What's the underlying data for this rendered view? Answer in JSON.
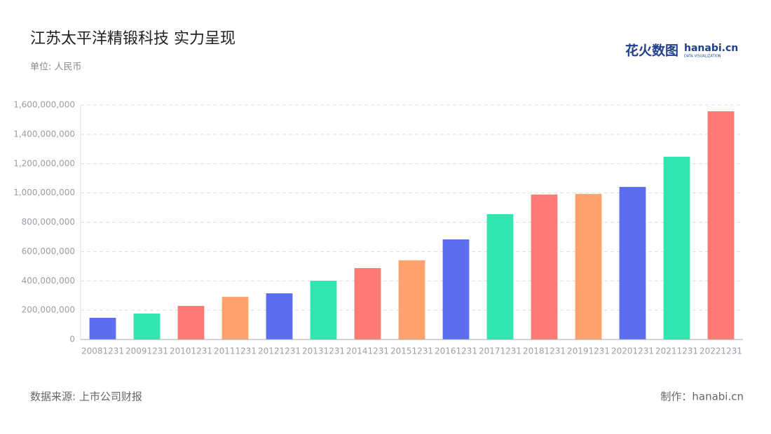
{
  "chart_data": {
    "type": "bar",
    "title": "江苏太平洋精锻科技 实力呈现",
    "subtitle": "单位: 人民币",
    "source": "数据来源: 上市公司财报",
    "credit": "制作：hanabi.cn",
    "logo": {
      "brand": "花火数图",
      "site": "hanabi.cn",
      "tagline": "DATA VISUALIZATION"
    },
    "categories": [
      "20081231",
      "20091231",
      "20101231",
      "20111231",
      "20121231",
      "20131231",
      "20141231",
      "20151231",
      "20161231",
      "20171231",
      "20181231",
      "20191231",
      "20201231",
      "20211231",
      "20221231"
    ],
    "values": [
      148000000,
      177000000,
      229000000,
      291000000,
      315000000,
      401000000,
      487000000,
      540000000,
      683000000,
      855000000,
      989000000,
      993000000,
      1041000000,
      1247000000,
      1557000000
    ],
    "colors": [
      "#5b6ef0",
      "#2ee6b0",
      "#ff7a72",
      "#ffa36e",
      "#5b6ef0",
      "#2ee6b0",
      "#ff7a72",
      "#ffa36e",
      "#5b6ef0",
      "#2ee6b0",
      "#ff7a72",
      "#ffa36e",
      "#5b6ef0",
      "#2ee6b0",
      "#ff7a72"
    ],
    "ylim": [
      0,
      1600000000
    ],
    "yticks": [
      0,
      {
        "value": 200000000,
        "label": "200,000,000"
      },
      {
        "value": 400000000,
        "label": "400,000,000"
      },
      {
        "value": 600000000,
        "label": "600,000,000"
      },
      {
        "value": 800000000,
        "label": "800,000,000"
      },
      {
        "value": 1000000000,
        "label": "1,000,000,000"
      },
      {
        "value": 1200000000,
        "label": "1,200,000,000"
      },
      {
        "value": 1400000000,
        "label": "1,400,000,000"
      },
      {
        "value": 1600000000,
        "label": "1,600,000,000"
      }
    ],
    "grid": true
  }
}
